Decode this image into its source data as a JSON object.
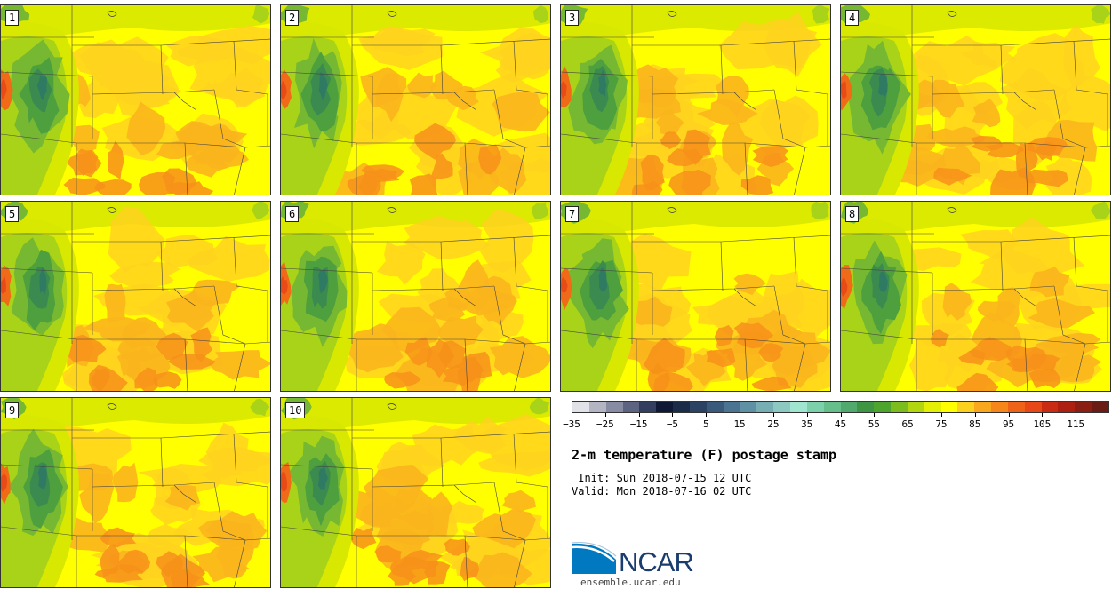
{
  "members": [
    "1",
    "2",
    "3",
    "4",
    "5",
    "6",
    "7",
    "8",
    "9",
    "10"
  ],
  "colors": {
    "base_fill": "#ffff00",
    "warm_1": "#ffd21f",
    "warm_2": "#fbb51d",
    "warm_3": "#f7901a",
    "warm_4": "#f06a18",
    "warm_5": "#e94b17",
    "cool_1": "#d8e800",
    "cool_2": "#a8d318",
    "cool_3": "#76b832",
    "cool_4": "#4e9f3d",
    "cool_5": "#3b8a4f",
    "cool_6": "#2f7a63"
  },
  "colorbar": {
    "colors": [
      "#e1e1e8",
      "#b4b5c3",
      "#888ca2",
      "#5c6482",
      "#333e5f",
      "#0f1935",
      "#1b2c48",
      "#2b4262",
      "#3a5a7c",
      "#4a7491",
      "#5f91a4",
      "#77aeb3",
      "#8dc9c0",
      "#9fe5d0",
      "#7dd1aa",
      "#66be8b",
      "#52a96d",
      "#3e9544",
      "#4ea52e",
      "#7cbc1c",
      "#b2d70f",
      "#e4ef06",
      "#ffff00",
      "#fcd01e",
      "#f9a81d",
      "#f6861a",
      "#ee6317",
      "#e84817",
      "#c92c13",
      "#ac1f11",
      "#8a1e13",
      "#6a1b14"
    ],
    "tick_labels": [
      "−35",
      "−25",
      "−15",
      "−5",
      "5",
      "15",
      "25",
      "35",
      "45",
      "55",
      "65",
      "75",
      "85",
      "95",
      "105",
      "115"
    ]
  },
  "title": "2-m temperature (F) postage stamp",
  "init": " Init: Sun 2018-07-15 12 UTC",
  "valid": "Valid: Mon 2018-07-16 02 UTC",
  "logo": {
    "text": "NCAR",
    "site": "ensemble.ucar.edu",
    "blue": "#0079c1",
    "navy": "#1b3d6d"
  },
  "icons": {
    "logo": "ncar-sunrise-icon"
  }
}
